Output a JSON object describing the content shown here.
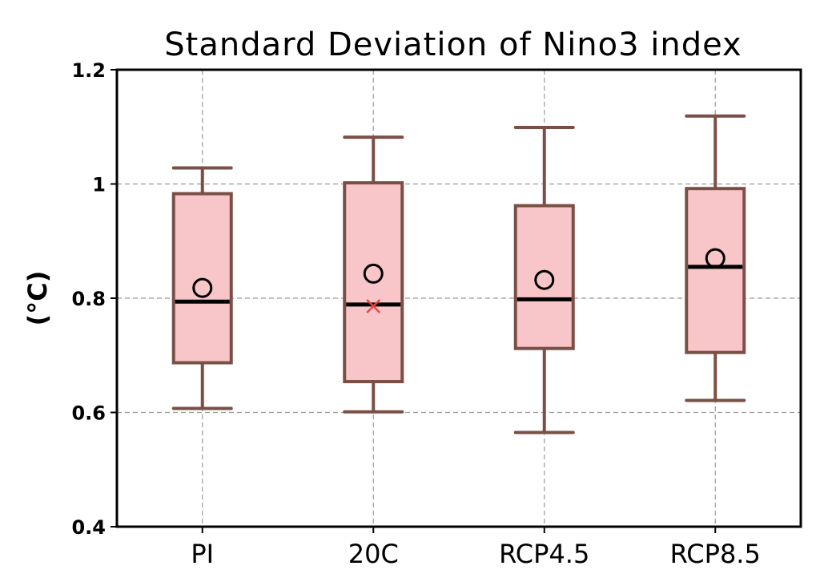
{
  "chart_data": {
    "type": "box",
    "title": "Standard Deviation of Nino3 index",
    "xlabel": "",
    "ylabel": "(°C)",
    "ylim": [
      0.4,
      1.2
    ],
    "yticks": [
      0.4,
      0.6,
      0.8,
      1.0,
      1.2
    ],
    "ytick_labels": [
      "0.4",
      "0.6",
      "0.8",
      "1",
      "1.2"
    ],
    "categories": [
      "PI",
      "20C",
      "RCP4.5",
      "RCP8.5"
    ],
    "grid": true,
    "boxes": [
      {
        "category": "PI",
        "whisker_low": 0.607,
        "q1": 0.687,
        "median": 0.794,
        "q3": 0.983,
        "whisker_high": 1.028,
        "mean": 0.818
      },
      {
        "category": "20C",
        "whisker_low": 0.601,
        "q1": 0.654,
        "median": 0.789,
        "q3": 1.002,
        "whisker_high": 1.082,
        "mean": 0.843,
        "marker_x": 0.786
      },
      {
        "category": "RCP4.5",
        "whisker_low": 0.565,
        "q1": 0.712,
        "median": 0.798,
        "q3": 0.962,
        "whisker_high": 1.099,
        "mean": 0.832
      },
      {
        "category": "RCP8.5",
        "whisker_low": 0.621,
        "q1": 0.705,
        "median": 0.855,
        "q3": 0.992,
        "whisker_high": 1.119,
        "mean": 0.87
      }
    ],
    "colors": {
      "box_fill": "#f8c6c8",
      "box_edge": "#7b4f45",
      "median": "#000000",
      "mean_marker": "#000000",
      "x_marker": "#e8454a",
      "grid": "#999999",
      "axes": "#000000"
    }
  }
}
